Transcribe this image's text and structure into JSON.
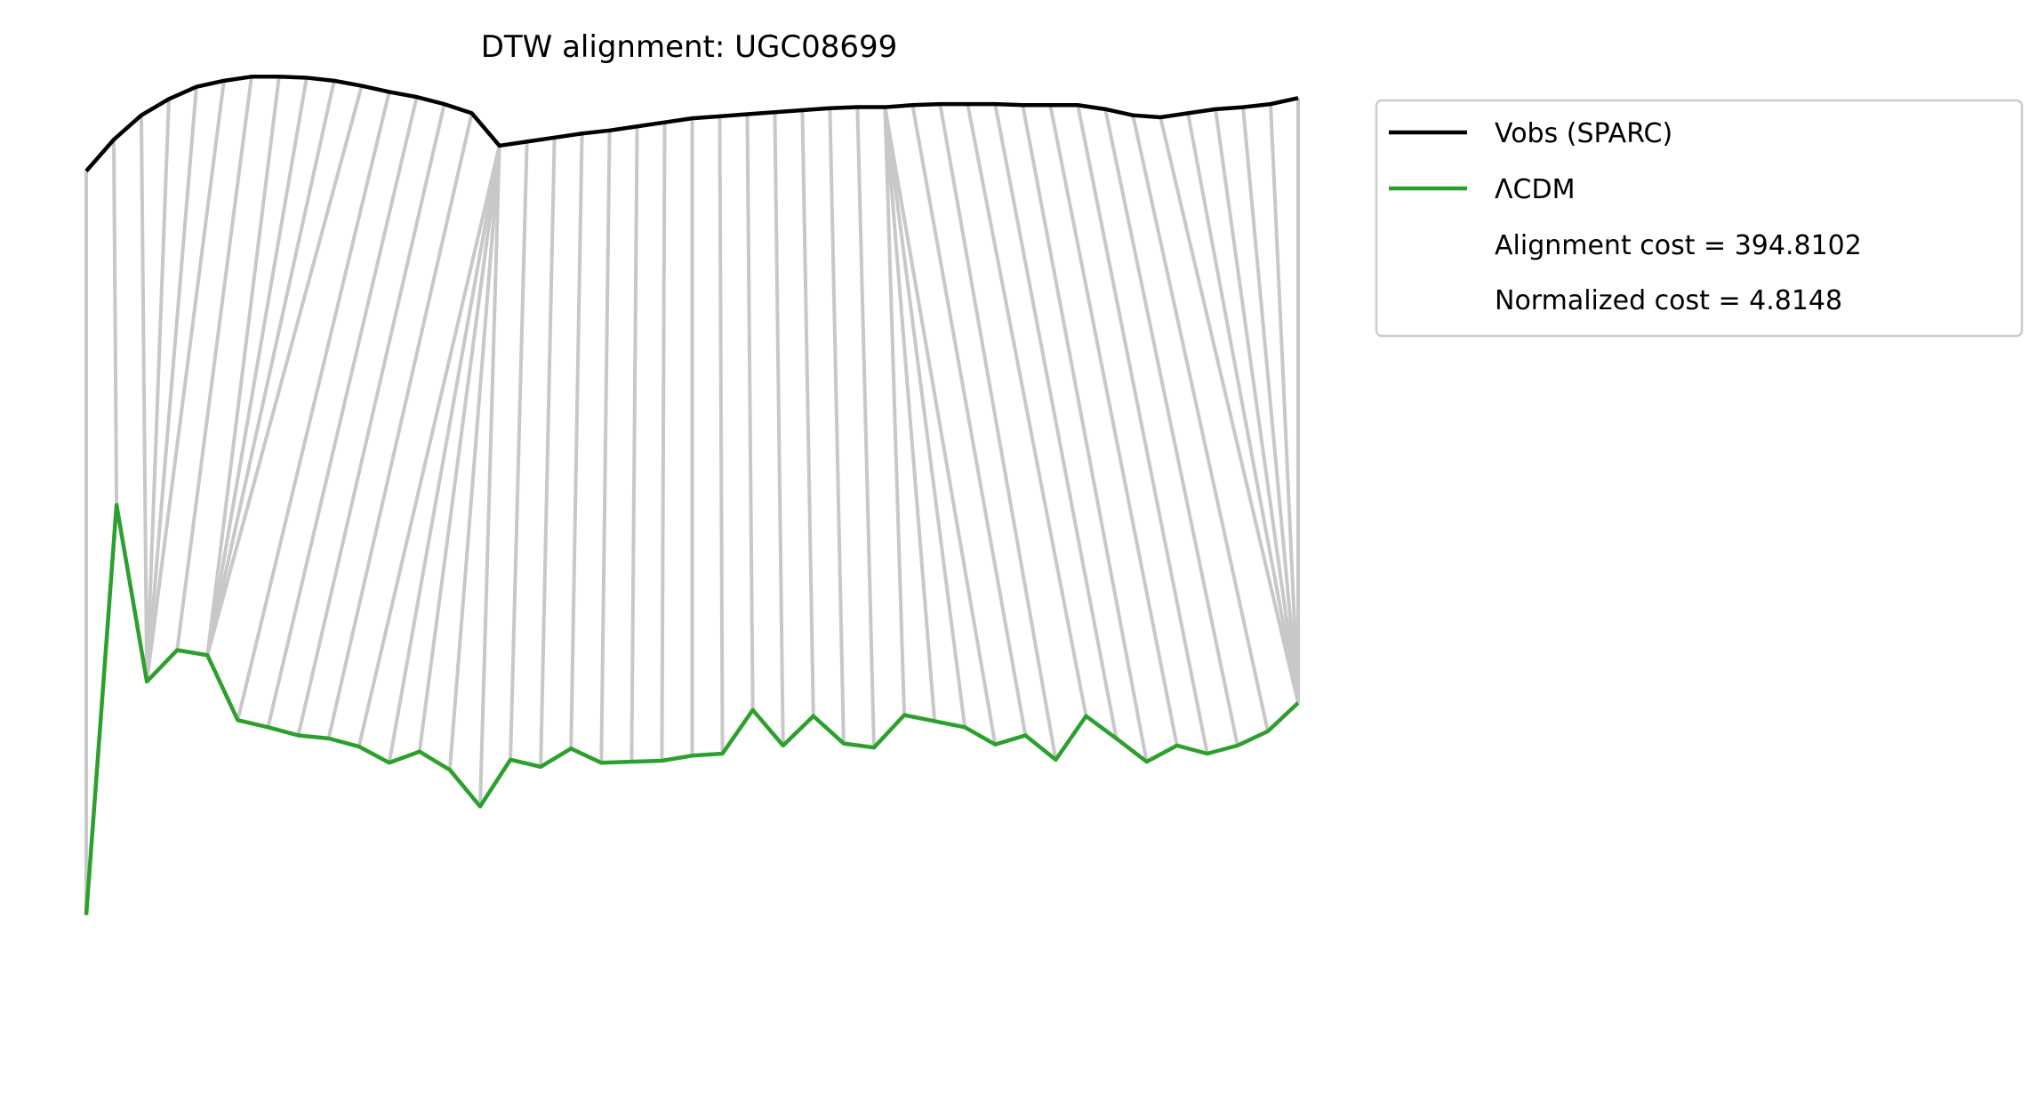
{
  "chart_data": {
    "type": "line",
    "title": "DTW alignment: UGC08699",
    "xlabel": "",
    "ylabel": "",
    "axes_visible": false,
    "grid": false,
    "legend_position": "outside-top-right",
    "ylim": [
      0,
      100
    ],
    "series": [
      {
        "name": "Vobs (SPARC)",
        "color": "#000000",
        "values": [
          91.9,
          95.0,
          97.4,
          99.0,
          100.2,
          100.8,
          101.2,
          101.2,
          101.1,
          100.8,
          100.3,
          99.7,
          99.2,
          98.5,
          97.6,
          94.4,
          94.8,
          95.2,
          95.6,
          95.9,
          96.3,
          96.7,
          97.1,
          97.3,
          97.5,
          97.7,
          97.9,
          98.1,
          98.2,
          98.2,
          98.4,
          98.5,
          98.5,
          98.5,
          98.4,
          98.4,
          98.4,
          98.0,
          97.4,
          97.2,
          97.6,
          98.0,
          98.2,
          98.5,
          99.1
        ]
      },
      {
        "name": "ΛCDM",
        "color": "#2ca02c",
        "values": [
          18.6,
          59.0,
          41.6,
          44.7,
          44.2,
          37.8,
          37.1,
          36.3,
          36.0,
          35.2,
          33.6,
          34.7,
          32.9,
          29.3,
          33.9,
          33.2,
          35.0,
          33.6,
          33.7,
          33.8,
          34.3,
          34.5,
          38.8,
          35.3,
          38.2,
          35.5,
          35.1,
          38.3,
          37.7,
          37.1,
          35.4,
          36.3,
          33.9,
          38.2,
          36.0,
          33.7,
          35.3,
          34.5,
          35.3,
          36.7,
          39.5
        ]
      }
    ],
    "alignment_path": [
      [
        0,
        0
      ],
      [
        1,
        1
      ],
      [
        2,
        2
      ],
      [
        3,
        2
      ],
      [
        4,
        2
      ],
      [
        5,
        2
      ],
      [
        6,
        3
      ],
      [
        7,
        4
      ],
      [
        8,
        4
      ],
      [
        9,
        4
      ],
      [
        10,
        4
      ],
      [
        11,
        5
      ],
      [
        12,
        6
      ],
      [
        13,
        7
      ],
      [
        14,
        8
      ],
      [
        15,
        9
      ],
      [
        15,
        10
      ],
      [
        15,
        11
      ],
      [
        15,
        12
      ],
      [
        15,
        13
      ],
      [
        16,
        14
      ],
      [
        17,
        15
      ],
      [
        18,
        16
      ],
      [
        19,
        17
      ],
      [
        20,
        18
      ],
      [
        21,
        19
      ],
      [
        22,
        20
      ],
      [
        23,
        21
      ],
      [
        24,
        22
      ],
      [
        25,
        23
      ],
      [
        26,
        24
      ],
      [
        27,
        25
      ],
      [
        28,
        26
      ],
      [
        29,
        27
      ],
      [
        29,
        28
      ],
      [
        29,
        29
      ],
      [
        29,
        30
      ],
      [
        30,
        31
      ],
      [
        31,
        32
      ],
      [
        32,
        33
      ],
      [
        33,
        34
      ],
      [
        34,
        35
      ],
      [
        35,
        36
      ],
      [
        36,
        37
      ],
      [
        37,
        38
      ],
      [
        38,
        39
      ],
      [
        39,
        40
      ],
      [
        40,
        40
      ],
      [
        41,
        40
      ],
      [
        42,
        40
      ],
      [
        43,
        40
      ],
      [
        44,
        40
      ]
    ],
    "legend_entries": [
      {
        "label": "Vobs (SPARC)",
        "color": "#000000"
      },
      {
        "label": "ΛCDM",
        "color": "#2ca02c"
      },
      {
        "label": "Alignment cost = 394.8102",
        "color": ""
      },
      {
        "label": "Normalized cost = 4.8148",
        "color": ""
      }
    ],
    "alignment_line_color": "#c8c8c8"
  }
}
